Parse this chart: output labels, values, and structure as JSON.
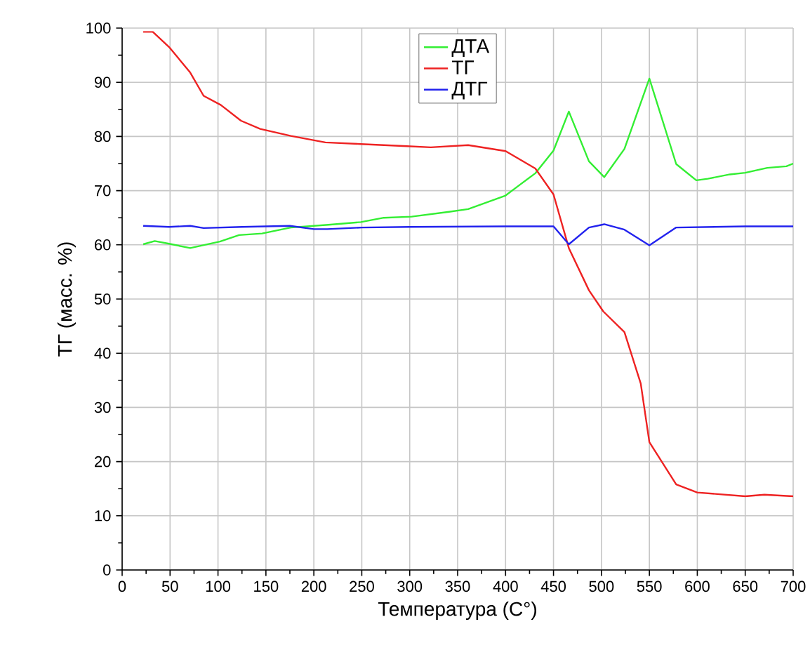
{
  "chart_data": {
    "type": "line",
    "xlabel": "Температура (С°)",
    "ylabel": "ТГ (масс. %)",
    "xlim": [
      0,
      700
    ],
    "ylim": [
      0,
      100
    ],
    "xticks": [
      0,
      50,
      100,
      150,
      200,
      250,
      300,
      350,
      400,
      450,
      500,
      550,
      600,
      650,
      700
    ],
    "yticks": [
      0,
      10,
      20,
      30,
      40,
      50,
      60,
      70,
      80,
      90,
      100
    ],
    "grid": true,
    "legend": "top",
    "marker": "none",
    "line_style": "solid",
    "series": [
      {
        "name": "ДТА",
        "color": "#33ee33",
        "x": [
          22,
          34,
          49,
          71,
          102,
          122,
          146,
          176,
          215,
          249,
          273,
          302,
          341,
          361,
          400,
          415,
          431,
          450,
          466,
          487,
          503,
          524,
          550,
          578,
          599,
          611,
          634,
          650,
          673,
          693,
          700
        ],
        "values": [
          60.1,
          60.7,
          60.2,
          59.4,
          60.6,
          61.8,
          62.1,
          63.2,
          63.7,
          64.2,
          65.0,
          65.2,
          66.1,
          66.6,
          69.1,
          71.1,
          73.2,
          77.4,
          84.6,
          75.4,
          72.5,
          77.7,
          90.7,
          74.9,
          71.9,
          72.2,
          73.0,
          73.3,
          74.2,
          74.5,
          75.0
        ]
      },
      {
        "name": "ТГ",
        "color": "#ee2222",
        "x": [
          22,
          32,
          49,
          71,
          85,
          103,
          124,
          144,
          176,
          212,
          249,
          297,
          322,
          361,
          400,
          431,
          450,
          466,
          487,
          502,
          524,
          541,
          550,
          578,
          600,
          650,
          670,
          700
        ],
        "values": [
          99.3,
          99.3,
          96.5,
          91.8,
          87.5,
          85.8,
          82.9,
          81.4,
          80.1,
          78.9,
          78.6,
          78.2,
          78.0,
          78.4,
          77.3,
          74.1,
          69.3,
          59.4,
          51.6,
          47.7,
          43.9,
          34.4,
          23.6,
          15.8,
          14.3,
          13.6,
          13.9,
          13.6
        ]
      },
      {
        "name": "ДТГ",
        "color": "#2222ee",
        "x": [
          22,
          49,
          71,
          85,
          125,
          175,
          200,
          214,
          250,
          300,
          400,
          450,
          466,
          487,
          503,
          524,
          550,
          578,
          650,
          700
        ],
        "values": [
          63.5,
          63.3,
          63.5,
          63.1,
          63.3,
          63.5,
          62.9,
          62.9,
          63.2,
          63.3,
          63.4,
          63.4,
          60.1,
          63.2,
          63.8,
          62.8,
          59.9,
          63.2,
          63.4,
          63.4
        ]
      }
    ]
  }
}
